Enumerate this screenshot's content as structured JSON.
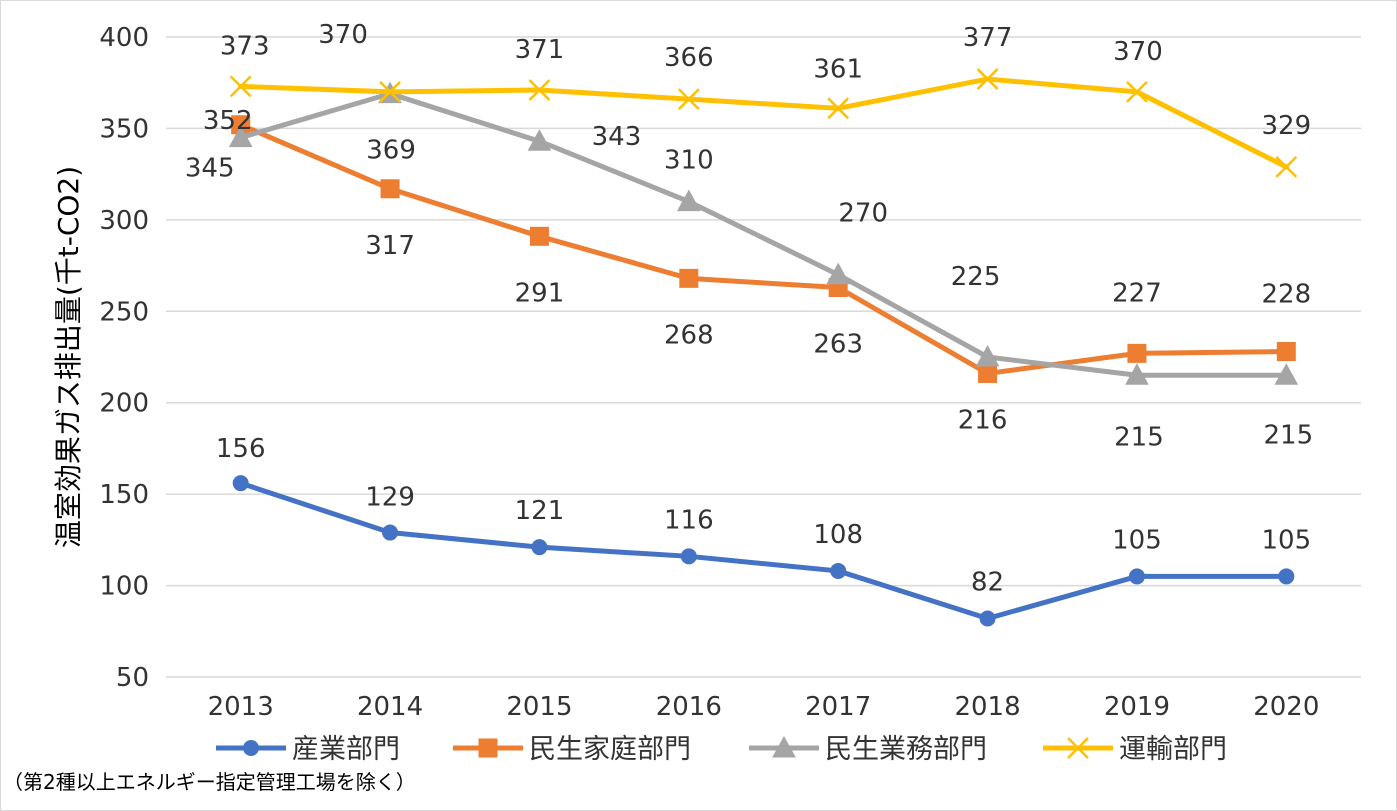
{
  "chart_data": {
    "type": "line",
    "title": "",
    "xlabel": "",
    "ylabel": "温室効果ガス排出量(千t-CO2)",
    "ylim": [
      50,
      400
    ],
    "yticks": [
      50,
      100,
      150,
      200,
      250,
      300,
      350,
      400
    ],
    "categories": [
      "2013",
      "2014",
      "2015",
      "2016",
      "2017",
      "2018",
      "2019",
      "2020"
    ],
    "grid": true,
    "legend_position": "bottom",
    "series": [
      {
        "name": "産業部門",
        "color": "#4472C4",
        "marker": "circle",
        "values": [
          156,
          129,
          121,
          116,
          108,
          82,
          105,
          105
        ]
      },
      {
        "name": "民生家庭部門",
        "color": "#ED7D31",
        "marker": "square",
        "values": [
          352,
          317,
          291,
          268,
          263,
          216,
          227,
          228
        ]
      },
      {
        "name": "民生業務部門",
        "color": "#A5A5A5",
        "marker": "triangle",
        "values": [
          345,
          369,
          343,
          310,
          270,
          225,
          215,
          215
        ]
      },
      {
        "name": "運輸部門",
        "color": "#FFC000",
        "marker": "x",
        "values": [
          373,
          370,
          371,
          366,
          361,
          377,
          370,
          329
        ]
      }
    ],
    "footnote": "（第2種以上エネルギー指定管理工場を除く）"
  }
}
